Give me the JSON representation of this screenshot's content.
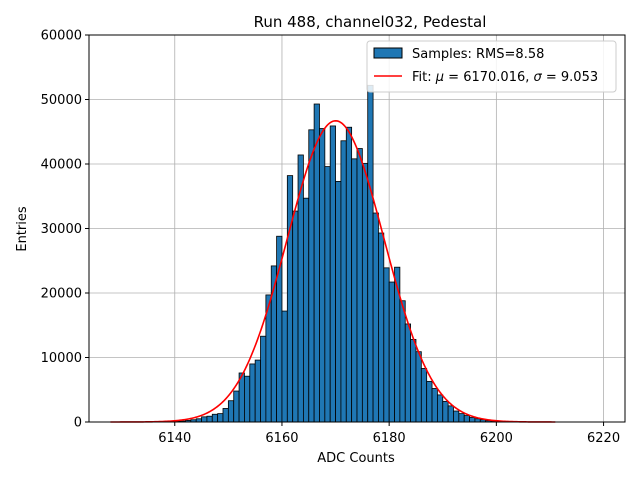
{
  "chart_data": {
    "type": "bar",
    "title": "Run 488, channel032, Pedestal",
    "xlabel": "ADC Counts",
    "ylabel": "Entries",
    "xlim": [
      6124,
      6224
    ],
    "ylim": [
      0,
      60000
    ],
    "xticks": [
      6140,
      6160,
      6180,
      6200,
      6220
    ],
    "yticks": [
      0,
      10000,
      20000,
      30000,
      40000,
      50000,
      60000
    ],
    "grid": true,
    "legend_position": "top-right",
    "bin_width": 1,
    "histogram": {
      "name": "Samples: RMS=8.58",
      "color": "#1f77b4",
      "bins": [
        {
          "x": 6140,
          "y": 100
        },
        {
          "x": 6141,
          "y": 150
        },
        {
          "x": 6142,
          "y": 250
        },
        {
          "x": 6143,
          "y": 350
        },
        {
          "x": 6144,
          "y": 500
        },
        {
          "x": 6145,
          "y": 800
        },
        {
          "x": 6146,
          "y": 900
        },
        {
          "x": 6147,
          "y": 1200
        },
        {
          "x": 6148,
          "y": 1300
        },
        {
          "x": 6149,
          "y": 2100
        },
        {
          "x": 6150,
          "y": 3300
        },
        {
          "x": 6151,
          "y": 4800
        },
        {
          "x": 6152,
          "y": 7600
        },
        {
          "x": 6153,
          "y": 7100
        },
        {
          "x": 6154,
          "y": 9000
        },
        {
          "x": 6155,
          "y": 9600
        },
        {
          "x": 6156,
          "y": 13300
        },
        {
          "x": 6157,
          "y": 19700
        },
        {
          "x": 6158,
          "y": 24200
        },
        {
          "x": 6159,
          "y": 28800
        },
        {
          "x": 6160,
          "y": 17200
        },
        {
          "x": 6161,
          "y": 38200
        },
        {
          "x": 6162,
          "y": 32700
        },
        {
          "x": 6163,
          "y": 41400
        },
        {
          "x": 6164,
          "y": 34700
        },
        {
          "x": 6165,
          "y": 45300
        },
        {
          "x": 6166,
          "y": 49300
        },
        {
          "x": 6167,
          "y": 45500
        },
        {
          "x": 6168,
          "y": 39600
        },
        {
          "x": 6169,
          "y": 45900
        },
        {
          "x": 6170,
          "y": 37300
        },
        {
          "x": 6171,
          "y": 43600
        },
        {
          "x": 6172,
          "y": 45700
        },
        {
          "x": 6173,
          "y": 40800
        },
        {
          "x": 6174,
          "y": 42400
        },
        {
          "x": 6175,
          "y": 40100
        },
        {
          "x": 6176,
          "y": 52200
        },
        {
          "x": 6177,
          "y": 32400
        },
        {
          "x": 6178,
          "y": 29300
        },
        {
          "x": 6179,
          "y": 23900
        },
        {
          "x": 6180,
          "y": 21700
        },
        {
          "x": 6181,
          "y": 24000
        },
        {
          "x": 6182,
          "y": 18800
        },
        {
          "x": 6183,
          "y": 15200
        },
        {
          "x": 6184,
          "y": 12800
        },
        {
          "x": 6185,
          "y": 10900
        },
        {
          "x": 6186,
          "y": 8300
        },
        {
          "x": 6187,
          "y": 6300
        },
        {
          "x": 6188,
          "y": 5200
        },
        {
          "x": 6189,
          "y": 4200
        },
        {
          "x": 6190,
          "y": 3200
        },
        {
          "x": 6191,
          "y": 2500
        },
        {
          "x": 6192,
          "y": 1700
        },
        {
          "x": 6193,
          "y": 1300
        },
        {
          "x": 6194,
          "y": 1000
        },
        {
          "x": 6195,
          "y": 700
        },
        {
          "x": 6196,
          "y": 500
        },
        {
          "x": 6197,
          "y": 350
        },
        {
          "x": 6198,
          "y": 200
        },
        {
          "x": 6199,
          "y": 150
        }
      ]
    },
    "fit": {
      "name_prefix": "Fit: ",
      "mu_symbol": "μ",
      "mu_text": " = 6170.016, ",
      "sigma_symbol": "σ",
      "sigma_text": " = 9.053",
      "color": "#ff0000",
      "mu": 6170.016,
      "sigma": 9.053,
      "amplitude": 46700,
      "x_range": [
        6128,
        6211
      ]
    }
  }
}
